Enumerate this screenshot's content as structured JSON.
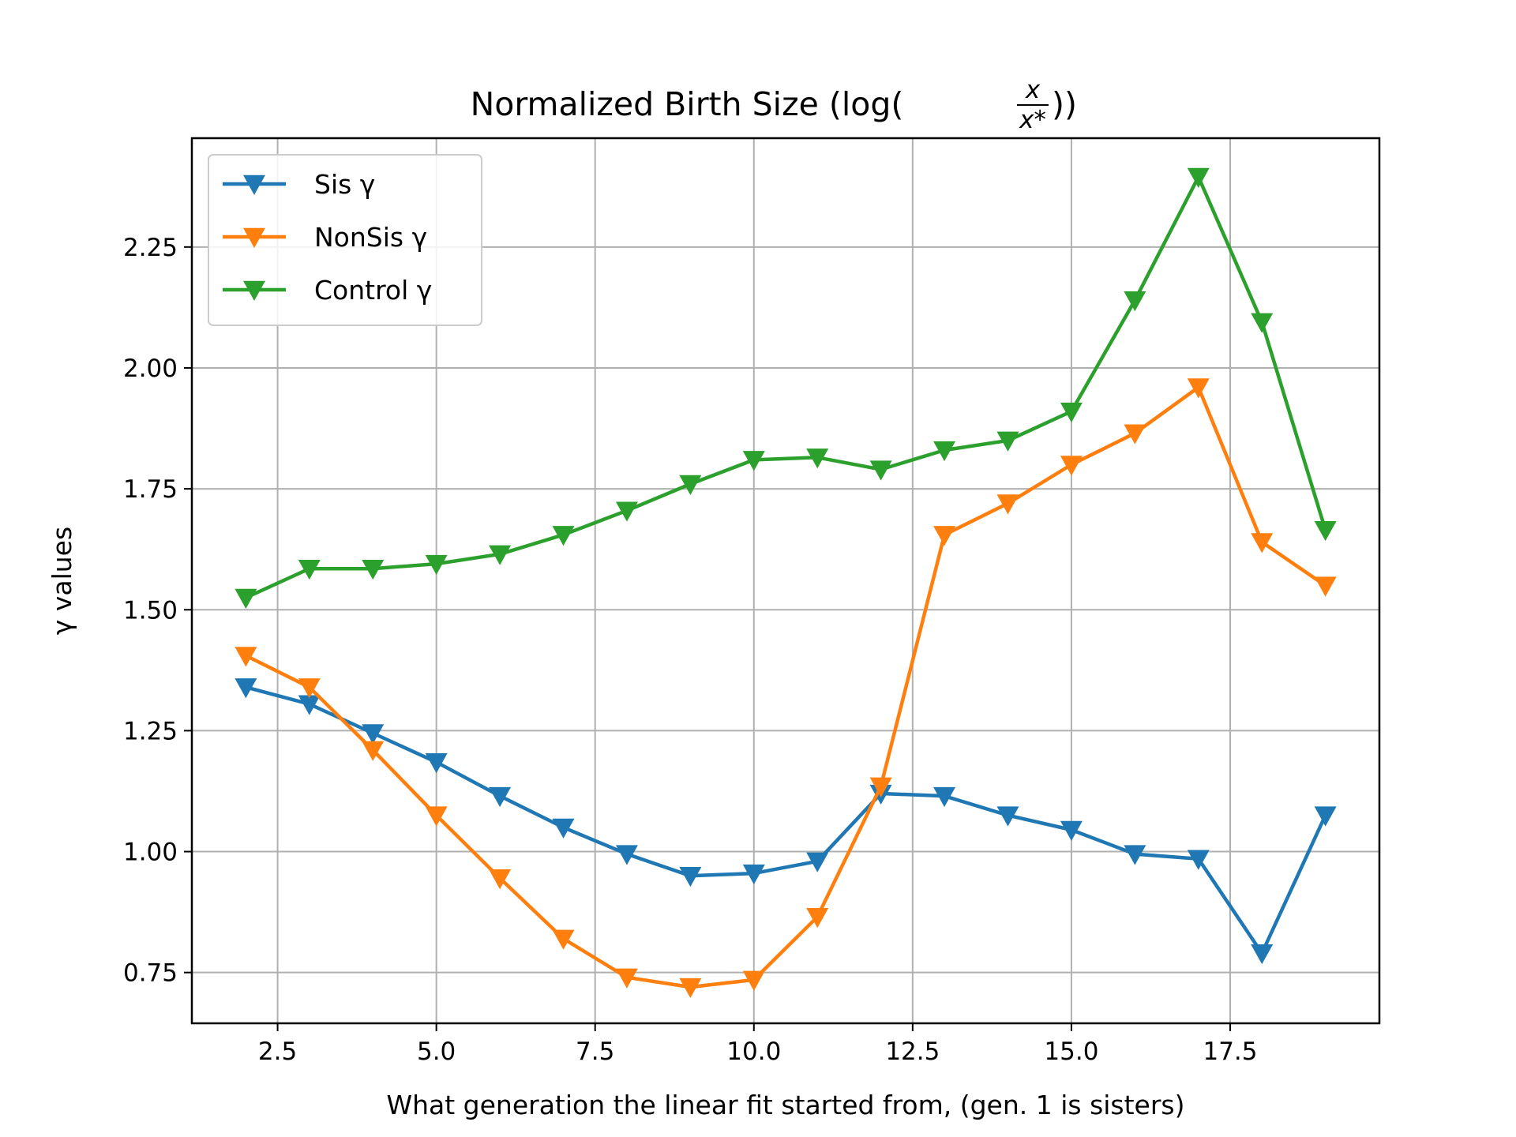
{
  "chart_data": {
    "type": "line",
    "title_main": "Normalized Birth Size (log(",
    "title_frac_num": "x",
    "title_frac_den": "x*",
    "title_close": "))",
    "xlabel": "What generation the linear fit started from, (gen. 1 is sisters)",
    "ylabel": "γ values",
    "xlim": [
      1.15,
      19.85
    ],
    "ylim": [
      0.645,
      2.475
    ],
    "xticks": [
      2.5,
      5.0,
      7.5,
      10.0,
      12.5,
      15.0,
      17.5
    ],
    "xtick_labels": [
      "2.5",
      "5.0",
      "7.5",
      "10.0",
      "12.5",
      "15.0",
      "17.5"
    ],
    "yticks": [
      0.75,
      1.0,
      1.25,
      1.5,
      1.75,
      2.0,
      2.25
    ],
    "ytick_labels": [
      "0.75",
      "1.00",
      "1.25",
      "1.50",
      "1.75",
      "2.00",
      "2.25"
    ],
    "grid": true,
    "legend_position": "top-left",
    "marker": "triangle-down",
    "x": [
      2,
      3,
      4,
      5,
      6,
      7,
      8,
      9,
      10,
      11,
      12,
      13,
      14,
      15,
      16,
      17,
      18,
      19
    ],
    "series": [
      {
        "name": "Sis γ",
        "color": "#1f77b4",
        "values": [
          1.34,
          1.305,
          1.245,
          1.185,
          1.115,
          1.05,
          0.995,
          0.95,
          0.955,
          0.98,
          1.12,
          1.115,
          1.075,
          1.045,
          0.995,
          0.985,
          0.79,
          1.075
        ]
      },
      {
        "name": "NonSis γ",
        "color": "#ff7f0e",
        "values": [
          1.405,
          1.34,
          1.21,
          1.075,
          0.945,
          0.82,
          0.74,
          0.72,
          0.735,
          0.865,
          1.135,
          1.655,
          1.72,
          1.8,
          1.865,
          1.96,
          1.64,
          1.55
        ]
      },
      {
        "name": "Control γ",
        "color": "#2ca02c",
        "values": [
          1.525,
          1.585,
          1.585,
          1.595,
          1.615,
          1.655,
          1.705,
          1.76,
          1.81,
          1.815,
          1.79,
          1.83,
          1.85,
          1.91,
          2.14,
          2.395,
          2.095,
          1.665
        ]
      }
    ]
  }
}
